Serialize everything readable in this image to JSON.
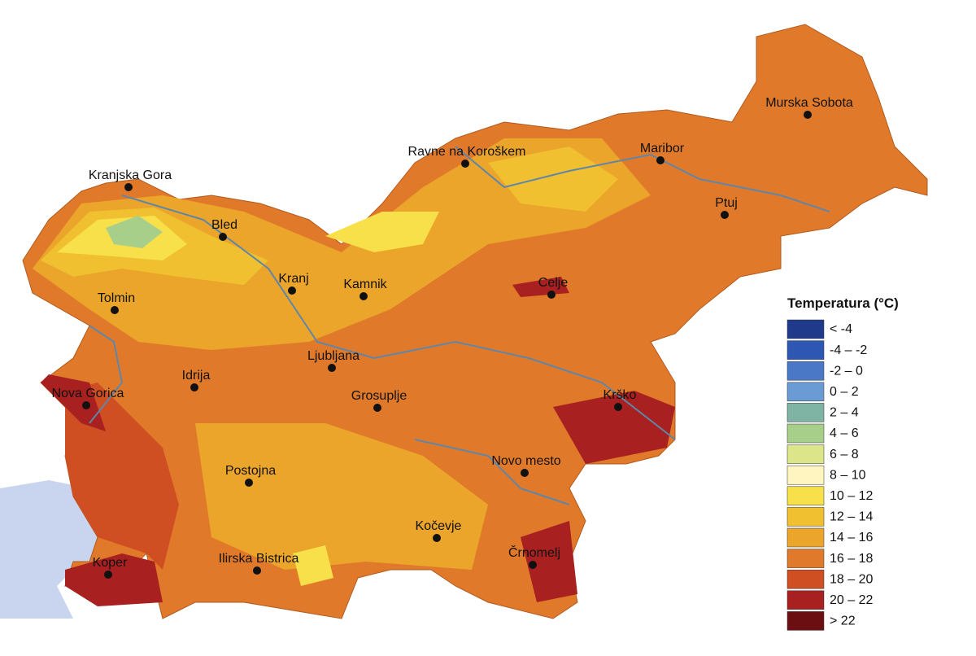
{
  "cities": [
    "Murska Sobota",
    "Maribor",
    "Ptuj",
    "Ravne na Koroškem",
    "Kranjska Gora",
    "Bled",
    "Kranj",
    "Kamnik",
    "Celje",
    "Tolmin",
    "Ljubljana",
    "Idrija",
    "Nova Gorica",
    "Grosuplje",
    "Krško",
    "Novo mesto",
    "Postojna",
    "Kočevje",
    "Črnomelj",
    "Ilirska Bistrica",
    "Koper"
  ],
  "legend": {
    "title": "Temperatura (°C)",
    "items": [
      {
        "label": "< -4",
        "color": "#1f3a8a"
      },
      {
        "label": "-4 – -2",
        "color": "#2d57b3"
      },
      {
        "label": "-2 – 0",
        "color": "#4a78c6"
      },
      {
        "label": "0 – 2",
        "color": "#6b9bd4"
      },
      {
        "label": "2 – 4",
        "color": "#7fb3a3"
      },
      {
        "label": "4 – 6",
        "color": "#a8cf8a"
      },
      {
        "label": "6 – 8",
        "color": "#dde58a"
      },
      {
        "label": "8 – 10",
        "color": "#fff5c0"
      },
      {
        "label": "10 – 12",
        "color": "#f7e04a"
      },
      {
        "label": "12 – 14",
        "color": "#f0c030"
      },
      {
        "label": "14 – 16",
        "color": "#eba52a"
      },
      {
        "label": "16 – 18",
        "color": "#e07a2a"
      },
      {
        "label": "18 – 20",
        "color": "#cf4f22"
      },
      {
        "label": "20 – 22",
        "color": "#a82020"
      },
      {
        "label": "> 22",
        "color": "#6b0f12"
      }
    ]
  }
}
